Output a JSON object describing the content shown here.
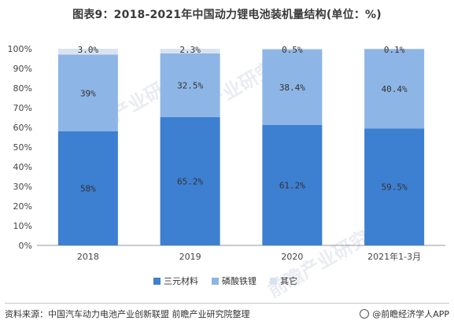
{
  "title": "图表9：2018-2021年中国动力锂电池装机量结构(单位：%)",
  "chart_data": {
    "type": "bar",
    "stacked": true,
    "categories": [
      "2018",
      "2019",
      "2020",
      "2021年1-3月"
    ],
    "series": [
      {
        "name": "三元材料",
        "values": [
          58,
          65.2,
          61.2,
          59.5
        ],
        "labels": [
          "58%",
          "65.2%",
          "61.2%",
          "59.5%"
        ],
        "color": "#3d7fd1"
      },
      {
        "name": "磷酸铁锂",
        "values": [
          39,
          32.5,
          38.4,
          40.4
        ],
        "labels": [
          "39%",
          "32.5%",
          "38.4%",
          "40.4%"
        ],
        "color": "#8db5e6"
      },
      {
        "name": "其它",
        "values": [
          3.0,
          2.3,
          0.5,
          0.1
        ],
        "labels": [
          "3.0%",
          "2.3%",
          "0.5%",
          "0.1%"
        ],
        "color": "#d9e3f0"
      }
    ],
    "ylim": [
      0,
      100
    ],
    "yticks": [
      "0%",
      "10%",
      "20%",
      "30%",
      "40%",
      "50%",
      "60%",
      "70%",
      "80%",
      "90%",
      "100%"
    ],
    "grid": false,
    "legend": "bottom"
  },
  "footer": {
    "source": "资料来源：中国汽车动力电池产业创新联盟 前瞻产业研究院整理",
    "brand": "@前瞻经济学人APP"
  },
  "watermark": "前瞻产业研究院"
}
